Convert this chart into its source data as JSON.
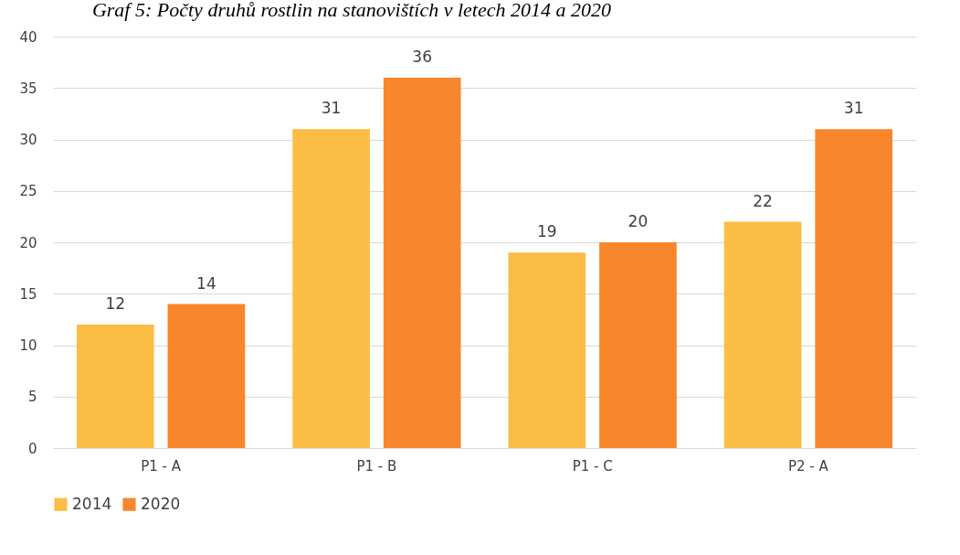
{
  "chart_data": {
    "type": "bar",
    "title": "Graf 5: Počty druhů rostlin na stanovištích v letech 2014 a 2020",
    "categories": [
      "P1 - A",
      "P1 - B",
      "P1 - C",
      "P2 - A"
    ],
    "series": [
      {
        "name": "2014",
        "color": "#fbbd45",
        "values": [
          12,
          31,
          19,
          22
        ]
      },
      {
        "name": "2020",
        "color": "#f8862c",
        "values": [
          14,
          36,
          20,
          31
        ]
      }
    ],
    "ylim": [
      0,
      40
    ],
    "yticks": [
      0,
      5,
      10,
      15,
      20,
      25,
      30,
      35,
      40
    ],
    "grid": "y",
    "legend": "bottom",
    "data_labels": true
  }
}
